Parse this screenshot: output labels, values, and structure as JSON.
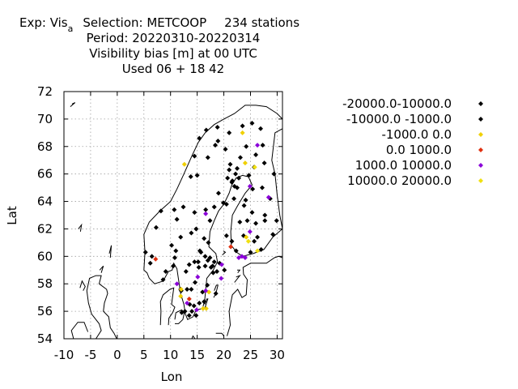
{
  "chart_data": {
    "type": "scatter",
    "title": {
      "line1_prefix": "Exp: Vis",
      "line1_subscript": "a",
      "line1_suffix": "Selection: METCOOP",
      "line1_stations": "234 stations",
      "line2": "Period: 20220310-20220314",
      "line3": "Visibility bias [m] at  00 UTC",
      "line4": "Used  06 + 18 42"
    },
    "xlabel": "Lon",
    "ylabel": "Lat",
    "xlim": [
      -10,
      31
    ],
    "ylim": [
      54,
      72
    ],
    "xticks": [
      -10,
      -5,
      0,
      5,
      10,
      15,
      20,
      25,
      30
    ],
    "yticks": [
      54,
      56,
      58,
      60,
      62,
      64,
      66,
      68,
      70,
      72
    ],
    "grid": true,
    "legend_position": "right",
    "series": [
      {
        "name": "-20000.0-10000.0",
        "color": "#000000",
        "points": [
          [
            12.1,
            55.9
          ],
          [
            12.7,
            56.0
          ],
          [
            14.8,
            55.7
          ],
          [
            15.4,
            56.6
          ],
          [
            16.3,
            56.7
          ],
          [
            16.9,
            57.9
          ],
          [
            18.5,
            57.3
          ],
          [
            17.9,
            59.3
          ],
          [
            18.2,
            59.6
          ],
          [
            17.4,
            59.9
          ],
          [
            16.5,
            60.0
          ],
          [
            15.3,
            59.2
          ],
          [
            14.6,
            58.1
          ],
          [
            13.1,
            57.6
          ],
          [
            11.9,
            57.6
          ],
          [
            12.9,
            58.9
          ],
          [
            14.5,
            59.6
          ],
          [
            15.5,
            60.4
          ],
          [
            17.1,
            61.0
          ],
          [
            17.4,
            62.6
          ],
          [
            18.2,
            63.6
          ],
          [
            19.9,
            63.9
          ],
          [
            21.9,
            64.2
          ],
          [
            22.5,
            65.0
          ],
          [
            20.7,
            65.7
          ],
          [
            21.5,
            65.4
          ],
          [
            22.2,
            66.0
          ],
          [
            21.2,
            66.7
          ],
          [
            20.3,
            67.8
          ],
          [
            18.4,
            68.1
          ],
          [
            18.9,
            68.4
          ],
          [
            17.0,
            67.2
          ],
          [
            15.0,
            65.9
          ],
          [
            14.5,
            63.2
          ],
          [
            12.4,
            63.6
          ],
          [
            11.2,
            62.7
          ],
          [
            11.9,
            61.4
          ],
          [
            10.2,
            60.8
          ],
          [
            10.8,
            59.9
          ],
          [
            10.5,
            59.3
          ],
          [
            6.5,
            60.0
          ],
          [
            6.2,
            59.5
          ],
          [
            5.3,
            60.3
          ],
          [
            7.3,
            62.1
          ],
          [
            8.2,
            63.3
          ],
          [
            10.7,
            63.4
          ],
          [
            13.8,
            65.8
          ],
          [
            14.5,
            67.3
          ],
          [
            15.4,
            68.6
          ],
          [
            16.7,
            69.2
          ],
          [
            18.8,
            69.4
          ],
          [
            23.5,
            69.5
          ],
          [
            25.3,
            69.7
          ],
          [
            26.9,
            69.3
          ],
          [
            27.3,
            68.1
          ],
          [
            26.0,
            67.4
          ],
          [
            27.6,
            66.8
          ],
          [
            25.7,
            66.5
          ],
          [
            24.7,
            65.9
          ],
          [
            27.2,
            65.0
          ],
          [
            29.4,
            66.0
          ],
          [
            28.7,
            64.2
          ],
          [
            27.7,
            63.0
          ],
          [
            26.0,
            62.4
          ],
          [
            25.7,
            61.1
          ],
          [
            25.0,
            60.3
          ],
          [
            27.0,
            60.5
          ],
          [
            29.9,
            62.6
          ],
          [
            29.2,
            61.6
          ],
          [
            23.7,
            61.5
          ],
          [
            22.3,
            60.4
          ],
          [
            21.5,
            61.1
          ],
          [
            23.0,
            62.5
          ],
          [
            23.8,
            63.7
          ],
          [
            25.4,
            64.9
          ],
          [
            24.1,
            64.1
          ],
          [
            22.8,
            65.7
          ],
          [
            23.1,
            67.2
          ],
          [
            24.2,
            68.0
          ],
          [
            21.0,
            69.0
          ],
          [
            20.5,
            61.5
          ],
          [
            20.5,
            63.8
          ],
          [
            19.0,
            64.6
          ],
          [
            16.6,
            63.4
          ],
          [
            14.8,
            62.0
          ],
          [
            13.9,
            61.7
          ],
          [
            15.7,
            60.3
          ],
          [
            13.5,
            59.4
          ],
          [
            16.5,
            59.3
          ],
          [
            17.6,
            59.2
          ],
          [
            13.9,
            57.6
          ],
          [
            12.0,
            57.5
          ],
          [
            13.6,
            56.5
          ],
          [
            14.0,
            56.0
          ],
          [
            14.4,
            56.4
          ],
          [
            16.0,
            57.4
          ],
          [
            18.7,
            58.9
          ],
          [
            19.2,
            59.5
          ],
          [
            21.0,
            66.3
          ],
          [
            22.5,
            66.4
          ],
          [
            25.3,
            63.2
          ],
          [
            27.7,
            62.6
          ],
          [
            26.3,
            61.4
          ],
          [
            24.4,
            62.6
          ],
          [
            16.3,
            61.3
          ],
          [
            15.2,
            59.6
          ],
          [
            18.0,
            58.8
          ],
          [
            17.0,
            59.7
          ],
          [
            13.5,
            55.7
          ]
        ]
      },
      {
        "name": "-10000.0 -1000.0",
        "color": "#000000",
        "points": [
          [
            21.6,
            65.5
          ],
          [
            22.0,
            65.1
          ],
          [
            20.1,
            59.0
          ],
          [
            11.0,
            60.4
          ],
          [
            8.6,
            58.3
          ],
          [
            9.1,
            58.9
          ]
        ]
      },
      {
        "name": "-1000.0 0.0",
        "color": "#f0d000",
        "points": [
          [
            12.6,
            66.7
          ],
          [
            24.0,
            66.8
          ],
          [
            23.5,
            69.0
          ],
          [
            24.2,
            61.4
          ],
          [
            17.2,
            57.4
          ],
          [
            16.1,
            56.2
          ],
          [
            11.9,
            57.1
          ],
          [
            12.0,
            57.6
          ],
          [
            16.7,
            56.2
          ]
        ]
      },
      {
        "name": "0.0 1000.0",
        "color": "#e03010",
        "points": [
          [
            7.2,
            59.8
          ],
          [
            21.3,
            60.7
          ],
          [
            13.5,
            56.9
          ]
        ]
      },
      {
        "name": "1000.0 10000.0",
        "color": "#8a00d8",
        "points": [
          [
            26.3,
            68.1
          ],
          [
            28.4,
            64.3
          ],
          [
            24.9,
            65.1
          ],
          [
            16.6,
            63.1
          ],
          [
            24.9,
            61.8
          ],
          [
            23.4,
            60.0
          ],
          [
            24.0,
            59.9
          ],
          [
            19.6,
            59.4
          ],
          [
            19.5,
            58.4
          ],
          [
            16.6,
            57.5
          ],
          [
            15.1,
            58.5
          ],
          [
            13.1,
            56.6
          ],
          [
            14.9,
            56.1
          ],
          [
            11.2,
            58.0
          ],
          [
            22.8,
            59.9
          ]
        ]
      },
      {
        "name": "10000.0 20000.0",
        "color": "#f0e010",
        "points": [
          [
            25.8,
            66.5
          ],
          [
            26.3,
            60.4
          ],
          [
            24.6,
            61.1
          ]
        ]
      }
    ]
  }
}
